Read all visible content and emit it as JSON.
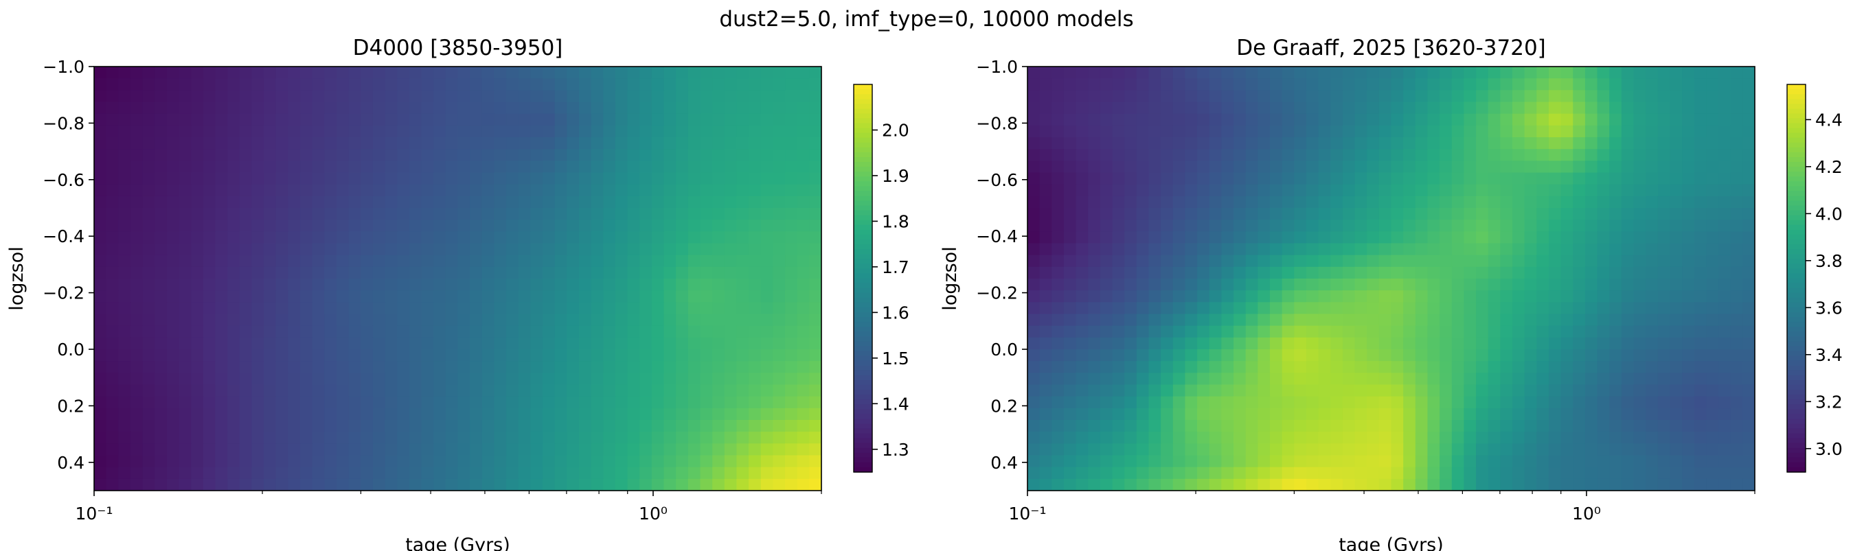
{
  "figure": {
    "suptitle": "dust2=5.0, imf_type=0, 10000 models"
  },
  "colors": {
    "viridis_low": "#440154",
    "viridis_mid": "#21918c",
    "viridis_high": "#fde725",
    "axis": "#000000"
  },
  "chart_data": [
    {
      "type": "heatmap",
      "title": "D4000 [3850-3950]",
      "xlabel": "tage (Gyrs)",
      "ylabel": "logzsol",
      "x_scale": "log",
      "xlim": [
        0.1,
        2.0
      ],
      "ylim": [
        -1.0,
        0.5
      ],
      "y_inverted": true,
      "xtick_values": [
        0.1,
        1.0
      ],
      "xtick_labels": [
        "10⁻¹",
        "10⁰"
      ],
      "ytick_values": [
        -1.0,
        -0.8,
        -0.6,
        -0.4,
        -0.2,
        0.0,
        0.2,
        0.4
      ],
      "ytick_labels": [
        "−1.0",
        "−0.8",
        "−0.6",
        "−0.4",
        "−0.2",
        "0.0",
        "0.2",
        "0.4"
      ],
      "colormap": "viridis",
      "colorbar_range": [
        1.25,
        2.1
      ],
      "colorbar_ticks": [
        1.3,
        1.4,
        1.5,
        1.6,
        1.7,
        1.8,
        1.9,
        2.0
      ],
      "colorbar_tick_labels": [
        "1.3",
        "1.4",
        "1.5",
        "1.6",
        "1.7",
        "1.8",
        "1.9",
        "2.0"
      ],
      "field": {
        "x_nodes": [
          0.1,
          0.15,
          0.2,
          0.3,
          0.45,
          0.65,
          0.9,
          1.2,
          1.6,
          2.0
        ],
        "y_nodes": [
          -1.0,
          -0.8,
          -0.6,
          -0.4,
          -0.2,
          0.0,
          0.2,
          0.4,
          0.5
        ],
        "values": [
          [
            1.25,
            1.3,
            1.34,
            1.4,
            1.46,
            1.54,
            1.63,
            1.72,
            1.74,
            1.75
          ],
          [
            1.28,
            1.31,
            1.35,
            1.41,
            1.47,
            1.48,
            1.64,
            1.73,
            1.76,
            1.77
          ],
          [
            1.28,
            1.32,
            1.36,
            1.43,
            1.49,
            1.56,
            1.67,
            1.75,
            1.78,
            1.79
          ],
          [
            1.29,
            1.33,
            1.38,
            1.46,
            1.52,
            1.6,
            1.7,
            1.79,
            1.82,
            1.83
          ],
          [
            1.3,
            1.34,
            1.4,
            1.5,
            1.55,
            1.64,
            1.73,
            1.85,
            1.82,
            1.86
          ],
          [
            1.29,
            1.34,
            1.41,
            1.49,
            1.56,
            1.66,
            1.75,
            1.82,
            1.85,
            1.88
          ],
          [
            1.27,
            1.33,
            1.41,
            1.48,
            1.57,
            1.68,
            1.76,
            1.83,
            1.9,
            1.95
          ],
          [
            1.26,
            1.33,
            1.41,
            1.49,
            1.58,
            1.69,
            1.78,
            1.88,
            2.02,
            2.07
          ],
          [
            1.27,
            1.34,
            1.42,
            1.5,
            1.59,
            1.7,
            1.79,
            1.92,
            2.07,
            2.1
          ]
        ]
      }
    },
    {
      "type": "heatmap",
      "title": "De Graaff, 2025 [3620-3720]",
      "xlabel": "tage (Gyrs)",
      "ylabel": "logzsol",
      "x_scale": "log",
      "xlim": [
        0.1,
        2.0
      ],
      "ylim": [
        -1.0,
        0.5
      ],
      "y_inverted": true,
      "xtick_values": [
        0.1,
        1.0
      ],
      "xtick_labels": [
        "10⁻¹",
        "10⁰"
      ],
      "ytick_values": [
        -1.0,
        -0.8,
        -0.6,
        -0.4,
        -0.2,
        0.0,
        0.2,
        0.4
      ],
      "ytick_labels": [
        "−1.0",
        "−0.8",
        "−0.6",
        "−0.4",
        "−0.2",
        "0.0",
        "0.2",
        "0.4"
      ],
      "colormap": "viridis",
      "colorbar_range": [
        2.9,
        4.55
      ],
      "colorbar_ticks": [
        3.0,
        3.2,
        3.4,
        3.6,
        3.8,
        4.0,
        4.2,
        4.4
      ],
      "colorbar_tick_labels": [
        "3.0",
        "3.2",
        "3.4",
        "3.6",
        "3.8",
        "4.0",
        "4.2",
        "4.4"
      ],
      "field": {
        "x_nodes": [
          0.1,
          0.15,
          0.2,
          0.3,
          0.45,
          0.65,
          0.9,
          1.2,
          1.6,
          2.0
        ],
        "y_nodes": [
          -1.0,
          -0.8,
          -0.6,
          -0.4,
          -0.2,
          0.0,
          0.2,
          0.4,
          0.5
        ],
        "values": [
          [
            3.05,
            3.1,
            3.3,
            3.5,
            3.62,
            3.9,
            4.15,
            3.8,
            3.72,
            3.7
          ],
          [
            3.05,
            3.18,
            3.22,
            3.45,
            3.72,
            4.05,
            4.4,
            3.85,
            3.72,
            3.7
          ],
          [
            2.95,
            3.15,
            3.3,
            3.55,
            3.85,
            4.05,
            4.0,
            3.8,
            3.7,
            3.68
          ],
          [
            2.92,
            3.2,
            3.4,
            3.7,
            3.95,
            4.15,
            3.9,
            3.7,
            3.6,
            3.55
          ],
          [
            3.08,
            3.3,
            3.55,
            4.1,
            4.25,
            4.0,
            3.85,
            3.62,
            3.55,
            3.5
          ],
          [
            3.3,
            3.5,
            3.9,
            4.4,
            4.2,
            4.0,
            3.7,
            3.5,
            3.42,
            3.42
          ],
          [
            3.45,
            3.7,
            4.2,
            4.3,
            4.4,
            3.9,
            3.6,
            3.4,
            3.3,
            3.35
          ],
          [
            3.6,
            3.9,
            4.1,
            4.4,
            4.45,
            3.75,
            3.55,
            3.5,
            3.4,
            3.4
          ],
          [
            3.7,
            4.0,
            4.25,
            4.55,
            4.4,
            3.75,
            3.55,
            3.5,
            3.42,
            3.42
          ]
        ]
      }
    }
  ]
}
